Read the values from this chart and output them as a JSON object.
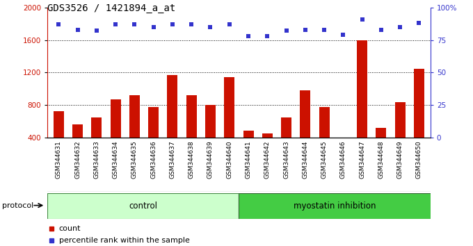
{
  "title": "GDS3526 / 1421894_a_at",
  "samples": [
    "GSM344631",
    "GSM344632",
    "GSM344633",
    "GSM344634",
    "GSM344635",
    "GSM344636",
    "GSM344637",
    "GSM344638",
    "GSM344639",
    "GSM344640",
    "GSM344641",
    "GSM344642",
    "GSM344643",
    "GSM344644",
    "GSM344645",
    "GSM344646",
    "GSM344647",
    "GSM344648",
    "GSM344649",
    "GSM344650"
  ],
  "counts": [
    730,
    560,
    650,
    870,
    920,
    780,
    1170,
    920,
    800,
    1140,
    490,
    450,
    650,
    980,
    780,
    350,
    1600,
    520,
    840,
    1250
  ],
  "percentile_ranks": [
    87,
    83,
    82,
    87,
    87,
    85,
    87,
    87,
    85,
    87,
    78,
    78,
    82,
    83,
    83,
    79,
    91,
    83,
    85,
    88
  ],
  "n_control": 10,
  "n_treatment": 10,
  "bar_color": "#cc1100",
  "dot_color": "#3333cc",
  "control_label": "control",
  "treatment_label": "myostatin inhibition",
  "protocol_label": "protocol",
  "legend_count": "count",
  "legend_percentile": "percentile rank within the sample",
  "ylim_left": [
    400,
    2000
  ],
  "ylim_right": [
    0,
    100
  ],
  "yticks_left": [
    400,
    800,
    1200,
    1600,
    2000
  ],
  "yticks_right": [
    0,
    25,
    50,
    75,
    100
  ],
  "ytick_labels_right": [
    "0",
    "25",
    "50",
    "75",
    "100%"
  ],
  "grid_values": [
    800,
    1200,
    1600
  ],
  "left_axis_color": "#cc1100",
  "right_axis_color": "#3333cc",
  "control_bg": "#ccffcc",
  "treatment_bg": "#44cc44",
  "xtick_bg": "#cccccc"
}
